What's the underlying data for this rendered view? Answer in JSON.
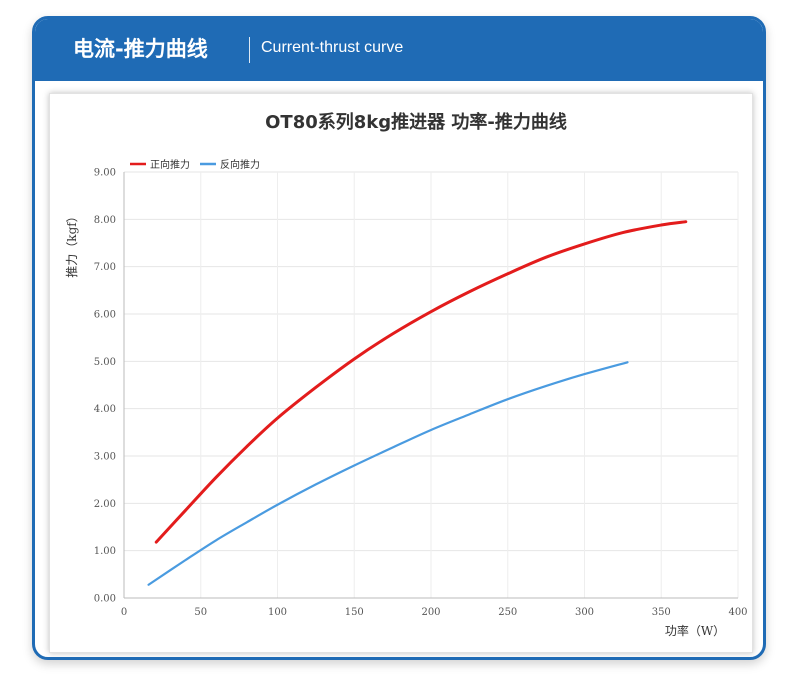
{
  "header": {
    "title_cn": "电流-推力曲线",
    "title_en": "Current-thrust curve",
    "accent_color": "#1f6bb5"
  },
  "chart_data": {
    "type": "line",
    "title": "OT80系列8kg推进器 功率-推力曲线",
    "xlabel": "功率（W）",
    "ylabel": "推力（kgf）",
    "xlim": [
      0,
      400
    ],
    "ylim": [
      0,
      9
    ],
    "x_ticks": [
      "0",
      "50",
      "100",
      "150",
      "200",
      "250",
      "300",
      "350",
      "400"
    ],
    "y_ticks": [
      "0.00",
      "1.00",
      "2.00",
      "3.00",
      "4.00",
      "5.00",
      "6.00",
      "7.00",
      "8.00",
      "9.00"
    ],
    "grid": true,
    "legend_position": "top-left",
    "series": [
      {
        "name": "正向推力",
        "color": "#e31c1c",
        "x": [
          21,
          40,
          60,
          80,
          100,
          125,
          150,
          175,
          200,
          225,
          250,
          275,
          300,
          325,
          350,
          366
        ],
        "y": [
          1.18,
          1.85,
          2.55,
          3.2,
          3.8,
          4.45,
          5.05,
          5.58,
          6.05,
          6.47,
          6.85,
          7.2,
          7.48,
          7.72,
          7.88,
          7.95
        ]
      },
      {
        "name": "反向推力",
        "color": "#4a9be0",
        "x": [
          16,
          40,
          60,
          80,
          100,
          125,
          150,
          175,
          200,
          225,
          250,
          275,
          300,
          328
        ],
        "y": [
          0.28,
          0.8,
          1.22,
          1.6,
          1.97,
          2.4,
          2.8,
          3.18,
          3.55,
          3.88,
          4.2,
          4.48,
          4.73,
          4.98
        ]
      }
    ]
  }
}
